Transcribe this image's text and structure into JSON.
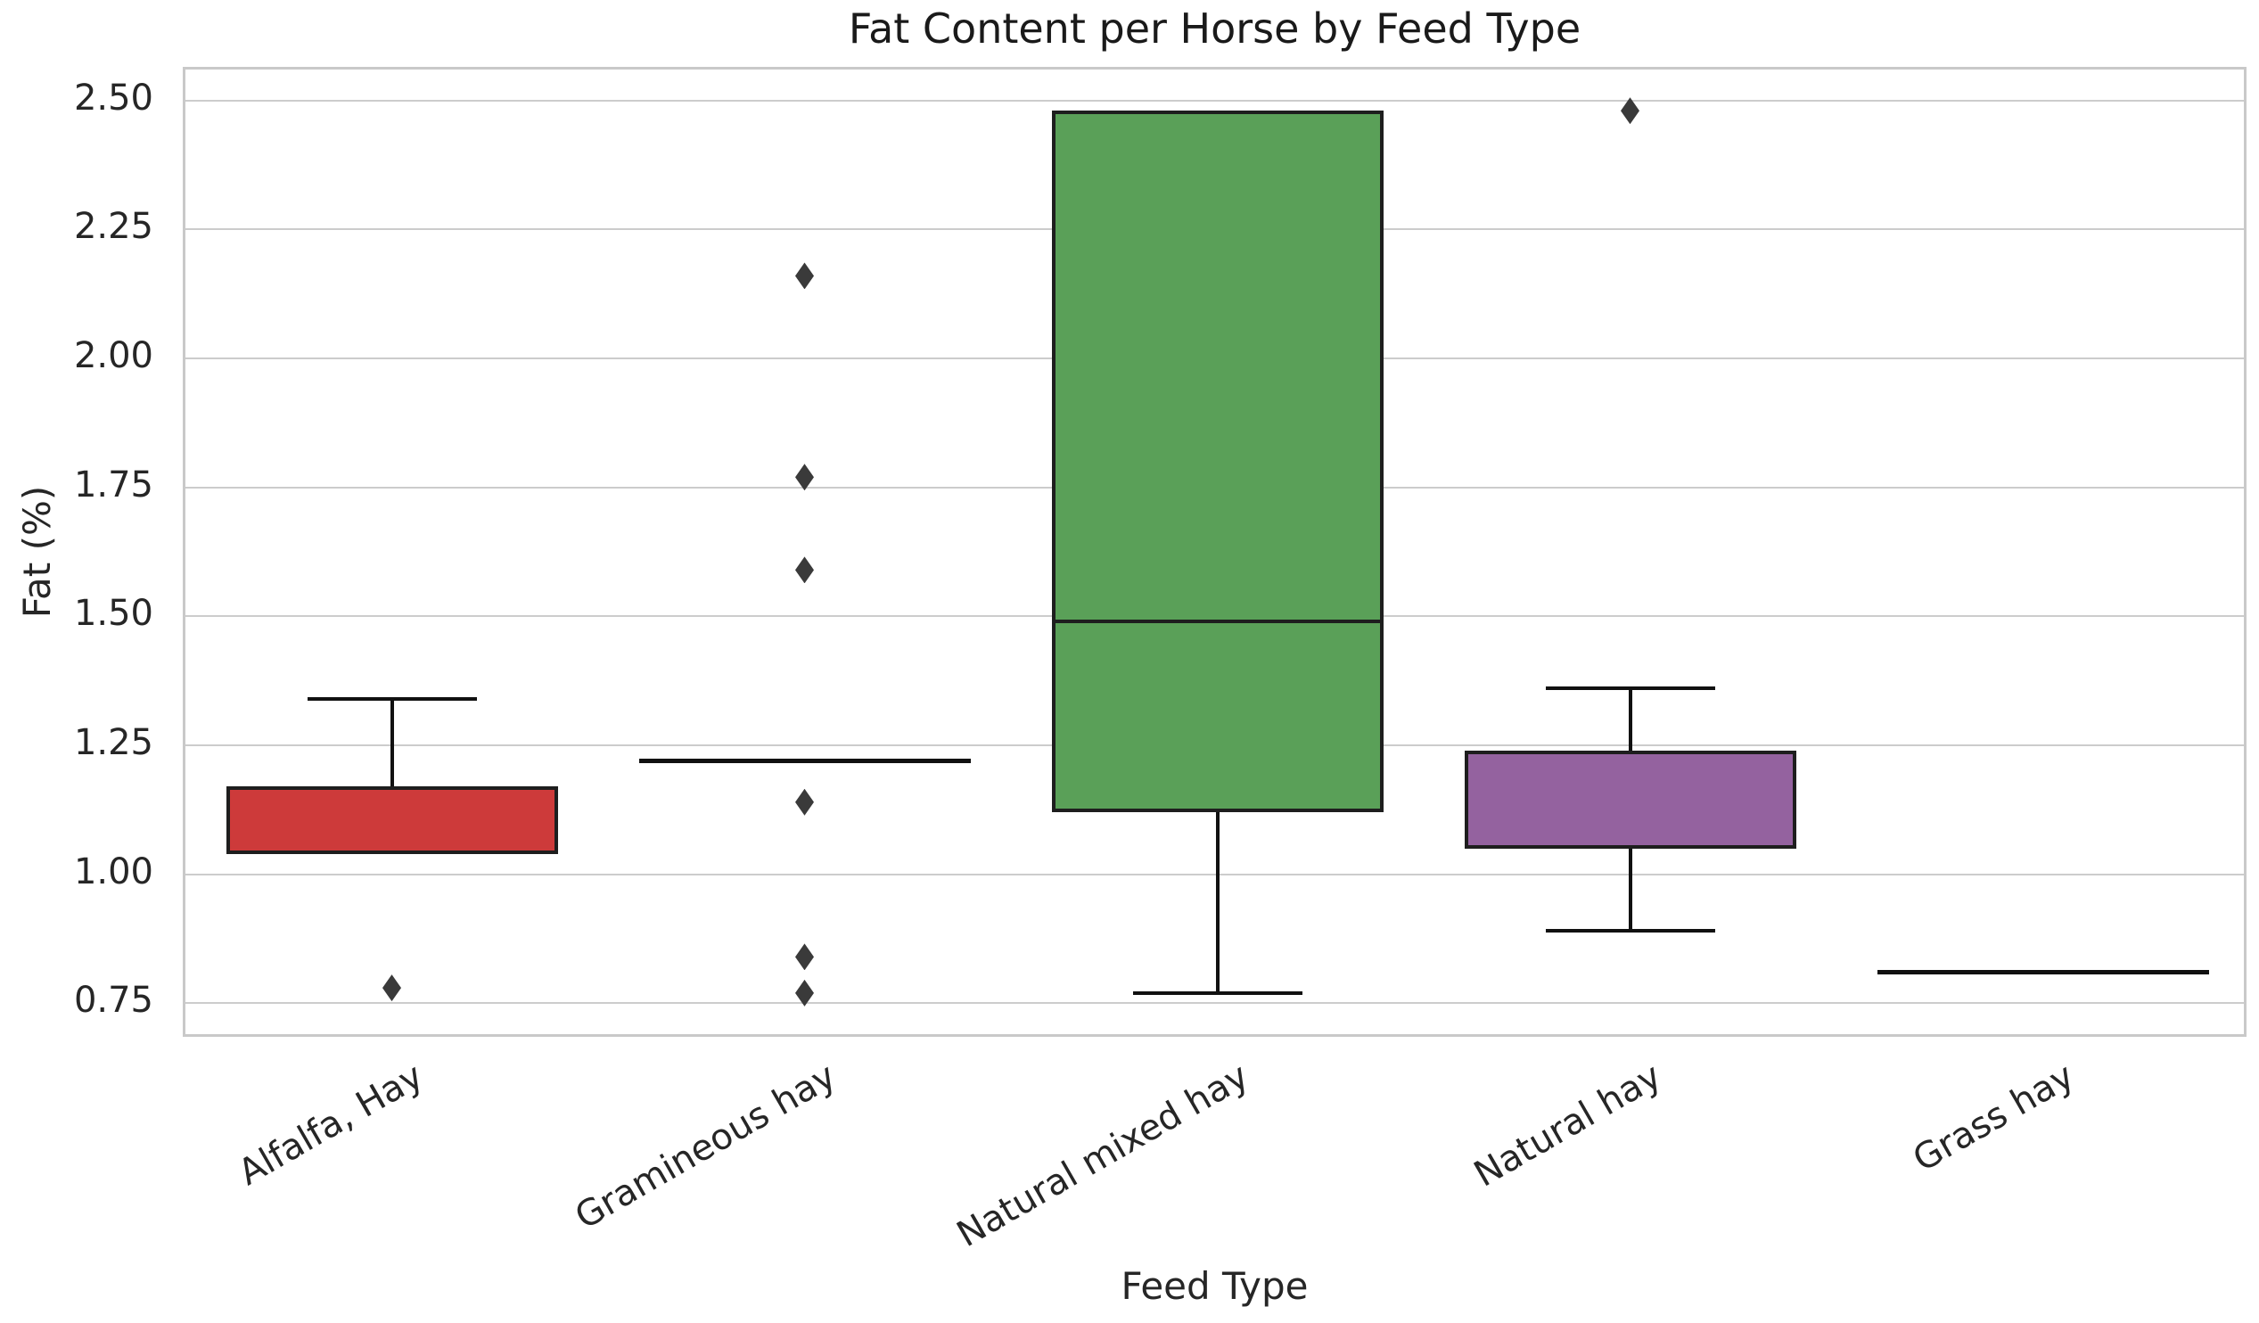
{
  "figure": {
    "background": "#ffffff"
  },
  "style": {
    "grid_color": "#cccccc",
    "spine_color": "#c9c9c9",
    "text_color": "#262626",
    "box_edge_color": "#1e1e1e",
    "whisker_color": "#111111",
    "outlier_color": "#3a3a3a"
  },
  "chart_data": {
    "type": "box",
    "title": "Fat Content per Horse by Feed Type",
    "xlabel": "Feed Type",
    "ylabel": "Fat (%)",
    "ylim": [
      0.68,
      2.56
    ],
    "yticks": [
      0.75,
      1.0,
      1.25,
      1.5,
      1.75,
      2.0,
      2.25,
      2.5
    ],
    "grid": "horizontal-only",
    "legend": null,
    "x_tick_rotation_deg": 30,
    "categories": [
      "Alfalfa, Hay",
      "Gramineous hay",
      "Natural mixed hay",
      "Natural hay",
      "Grass hay"
    ],
    "boxes": [
      {
        "category": "Alfalfa, Hay",
        "fill_color": "#cd3a3a",
        "q1": 1.04,
        "median": null,
        "q3": 1.17,
        "whisker_low": 1.04,
        "whisker_high": 1.34,
        "outliers": [
          0.78
        ]
      },
      {
        "category": "Gramineous hay",
        "fill_color": null,
        "q1": 1.22,
        "median": 1.22,
        "q3": 1.22,
        "whisker_low": 1.22,
        "whisker_high": 1.22,
        "outliers": [
          2.16,
          1.77,
          1.59,
          1.14,
          0.84,
          0.77
        ]
      },
      {
        "category": "Natural mixed hay",
        "fill_color": "#5aa058",
        "q1": 1.12,
        "median": 1.49,
        "q3": 2.48,
        "whisker_low": 0.77,
        "whisker_high": 2.48,
        "outliers": []
      },
      {
        "category": "Natural hay",
        "fill_color": "#94629f",
        "q1": 1.05,
        "median": null,
        "q3": 1.24,
        "whisker_low": 0.89,
        "whisker_high": 1.36,
        "outliers": [
          2.48
        ]
      },
      {
        "category": "Grass hay",
        "fill_color": null,
        "q1": 0.81,
        "median": 0.81,
        "q3": 0.81,
        "whisker_low": 0.81,
        "whisker_high": 0.81,
        "outliers": []
      }
    ]
  }
}
